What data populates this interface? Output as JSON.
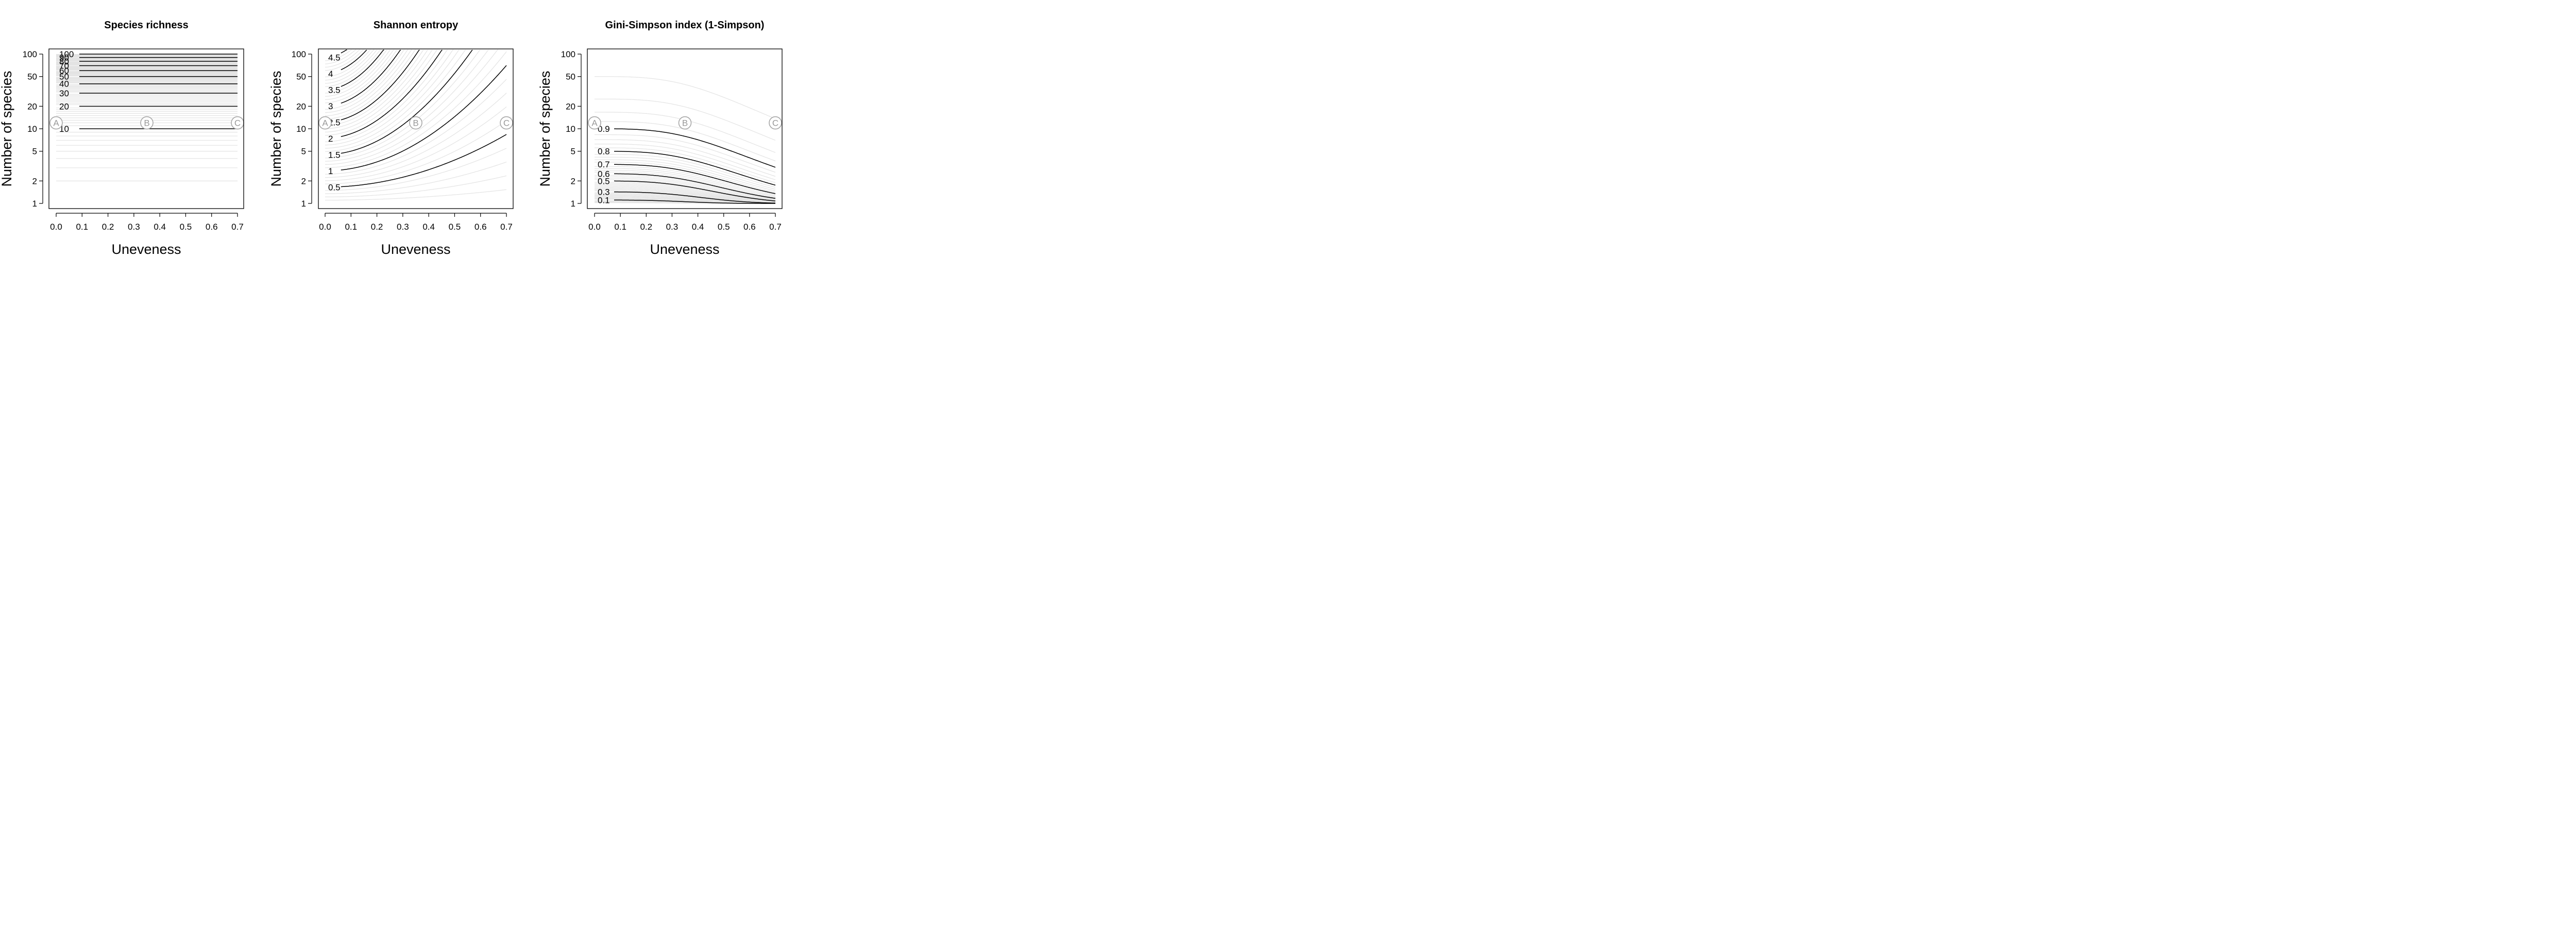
{
  "figure": {
    "xlabel": "Uneveness",
    "ylabel": "Number of species"
  },
  "colors": {
    "major_contour": "#000000",
    "minor_contour": "#e3e3e3",
    "marker": "#a6a6a6"
  },
  "chart_data": [
    {
      "type": "contour",
      "title": "Species richness",
      "xlabel": "Uneveness",
      "ylabel": "Number of species",
      "xlim": [
        0,
        0.7
      ],
      "ylim": [
        1,
        100
      ],
      "y_scale": "log",
      "x_ticks": [
        "0.0",
        "0.1",
        "0.2",
        "0.3",
        "0.4",
        "0.5",
        "0.6",
        "0.7"
      ],
      "y_ticks": [
        "1",
        "2",
        "5",
        "10",
        "20",
        "50",
        "100"
      ],
      "contour_levels": [
        "10",
        "20",
        "30",
        "40",
        "50",
        "60",
        "70",
        "80",
        "90",
        "100"
      ],
      "markers": [
        {
          "label": "A",
          "x": 0.0,
          "y": 12
        },
        {
          "label": "B",
          "x": 0.35,
          "y": 12
        },
        {
          "label": "C",
          "x": 0.7,
          "y": 12
        }
      ]
    },
    {
      "type": "contour",
      "title": "Shannon entropy",
      "xlabel": "Uneveness",
      "ylabel": "Number of species",
      "xlim": [
        0,
        0.7
      ],
      "ylim": [
        1,
        100
      ],
      "y_scale": "log",
      "x_ticks": [
        "0.0",
        "0.1",
        "0.2",
        "0.3",
        "0.4",
        "0.5",
        "0.6",
        "0.7"
      ],
      "y_ticks": [
        "1",
        "2",
        "5",
        "10",
        "20",
        "50",
        "100"
      ],
      "contour_levels": [
        "0.5",
        "1",
        "1.5",
        "2",
        "2.5",
        "3",
        "3.5",
        "4",
        "4.5"
      ],
      "markers": [
        {
          "label": "A",
          "x": 0.0,
          "y": 12
        },
        {
          "label": "B",
          "x": 0.35,
          "y": 12
        },
        {
          "label": "C",
          "x": 0.7,
          "y": 12
        }
      ]
    },
    {
      "type": "contour",
      "title": "Gini-Simpson index (1-Simpson)",
      "xlabel": "Uneveness",
      "ylabel": "Number of species",
      "xlim": [
        0,
        0.7
      ],
      "ylim": [
        1,
        100
      ],
      "y_scale": "log",
      "x_ticks": [
        "0.0",
        "0.1",
        "0.2",
        "0.3",
        "0.4",
        "0.5",
        "0.6",
        "0.7"
      ],
      "y_ticks": [
        "1",
        "2",
        "5",
        "10",
        "20",
        "50",
        "100"
      ],
      "contour_levels": [
        "0.1",
        "0.3",
        "0.5",
        "0.6",
        "0.7",
        "0.8",
        "0.9"
      ],
      "markers": [
        {
          "label": "A",
          "x": 0.0,
          "y": 12
        },
        {
          "label": "B",
          "x": 0.35,
          "y": 12
        },
        {
          "label": "C",
          "x": 0.7,
          "y": 12
        }
      ]
    }
  ]
}
